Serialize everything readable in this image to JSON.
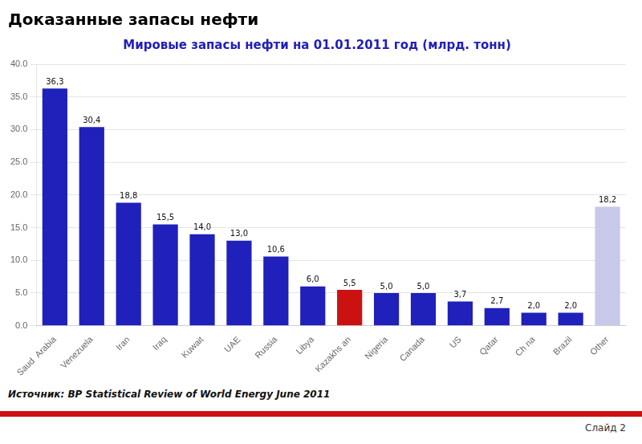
{
  "chart_data": {
    "type": "bar",
    "title": "Доказанные запасы нефти",
    "subtitle": "Мировые запасы нефти на 01.01.2011 год (млрд. тонн)",
    "categories": [
      "Saud  Arabia",
      "Venezuela",
      "Iran",
      "Iraq",
      "Kuwait",
      "UAE",
      "Russia",
      "Libya",
      "Kazakhs an",
      "Nigeria",
      "Canada",
      "US",
      "Qatar",
      "Ch na",
      "Brazil",
      "Other"
    ],
    "values": [
      36.3,
      30.4,
      18.8,
      15.5,
      14.0,
      13.0,
      10.6,
      6.0,
      5.5,
      5.0,
      5.0,
      3.7,
      2.7,
      2.0,
      2.0,
      18.2
    ],
    "value_labels": [
      "36,3",
      "30,4",
      "18,8",
      "15,5",
      "14,0",
      "13,0",
      "10,6",
      "6,0",
      "5,5",
      "5,0",
      "5,0",
      "3,7",
      "2,7",
      "2,0",
      "2,0",
      "18,2"
    ],
    "colors": [
      "#2020bb",
      "#2020bb",
      "#2020bb",
      "#2020bb",
      "#2020bb",
      "#2020bb",
      "#2020bb",
      "#2020bb",
      "#cc1111",
      "#2020bb",
      "#2020bb",
      "#2020bb",
      "#2020bb",
      "#2020bb",
      "#2020bb",
      "#c8c8e8"
    ],
    "ylim": [
      0,
      40.0
    ],
    "yticks": [
      {
        "value": 0,
        "label": "0.0"
      },
      {
        "value": 5,
        "label": "5.0"
      },
      {
        "value": 10,
        "label": "10.0"
      },
      {
        "value": 15,
        "label": "15.0"
      },
      {
        "value": 20,
        "label": "20.0"
      },
      {
        "value": 25,
        "label": "25.0"
      },
      {
        "value": 30,
        "label": "30.0"
      },
      {
        "value": 35,
        "label": "35.0"
      },
      {
        "value": 40,
        "label": "40.0"
      }
    ],
    "grid": true,
    "data_labels": true,
    "annotations": [
      "Источник: BP Statistical Review of World Energy June 2011",
      "Слайд 2"
    ]
  }
}
